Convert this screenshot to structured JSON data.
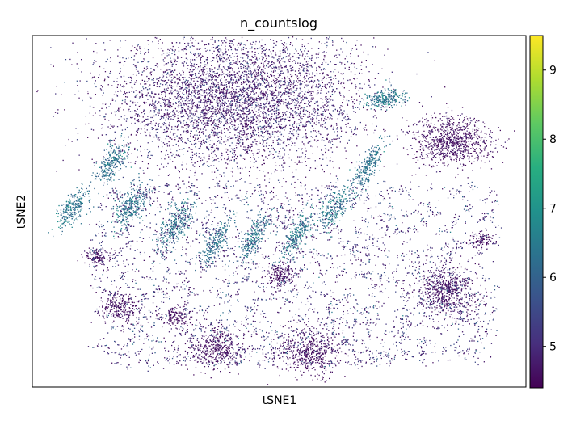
{
  "chart_data": {
    "type": "scatter",
    "title": "n_countslog",
    "xlabel": "tSNE1",
    "ylabel": "tSNE2",
    "x_ticks_shown": false,
    "y_ticks_shown": false,
    "grid": false,
    "legend": "none",
    "colorbar": {
      "position": "right",
      "colormap": "viridis",
      "range": [
        4.4,
        9.5
      ],
      "ticks": [
        5,
        6,
        7,
        8,
        9
      ],
      "tick_labels": [
        "5",
        "6",
        "7",
        "8",
        "9"
      ]
    },
    "axis_range_estimate": {
      "xlim": [
        0,
        100
      ],
      "ylim": [
        0,
        100
      ]
    },
    "clusters": [
      {
        "name": "large-center",
        "x": 41,
        "y": 82,
        "sx": 13,
        "sy": 10,
        "n": 5200,
        "cmin": 4.5,
        "cmax": 6.2,
        "shape": "blob"
      },
      {
        "name": "right-upper-blob",
        "x": 85,
        "y": 70,
        "sx": 4.0,
        "sy": 3.5,
        "n": 900,
        "cmin": 4.5,
        "cmax": 5.2,
        "shape": "blob"
      },
      {
        "name": "right-middle-blob",
        "x": 84,
        "y": 28,
        "sx": 3.0,
        "sy": 3.3,
        "n": 600,
        "cmin": 4.5,
        "cmax": 5.2,
        "shape": "blob"
      },
      {
        "name": "bottom-left-blob",
        "x": 37,
        "y": 11,
        "sx": 2.8,
        "sy": 2.9,
        "n": 420,
        "cmin": 4.5,
        "cmax": 5.0,
        "shape": "blob"
      },
      {
        "name": "bottom-center-blob",
        "x": 56,
        "y": 10,
        "sx": 3.3,
        "sy": 3.3,
        "n": 520,
        "cmin": 4.5,
        "cmax": 5.0,
        "shape": "blob"
      },
      {
        "name": "left-lower-blob",
        "x": 18,
        "y": 23,
        "sx": 2.0,
        "sy": 2.0,
        "n": 220,
        "cmin": 4.5,
        "cmax": 5.0,
        "shape": "blob"
      },
      {
        "name": "left-lower-blob-2",
        "x": 29,
        "y": 20,
        "sx": 1.6,
        "sy": 1.7,
        "n": 160,
        "cmin": 4.5,
        "cmax": 5.0,
        "shape": "blob"
      },
      {
        "name": "center-blob",
        "x": 50,
        "y": 32,
        "sx": 1.7,
        "sy": 1.6,
        "n": 180,
        "cmin": 4.5,
        "cmax": 5.0,
        "shape": "blob"
      },
      {
        "name": "left-small-blob",
        "x": 13,
        "y": 37,
        "sx": 1.4,
        "sy": 1.3,
        "n": 110,
        "cmin": 4.5,
        "cmax": 5.0,
        "shape": "blob"
      },
      {
        "name": "right-small-blob",
        "x": 91,
        "y": 42,
        "sx": 1.3,
        "sy": 1.2,
        "n": 90,
        "cmin": 4.5,
        "cmax": 5.0,
        "shape": "blob"
      },
      {
        "name": "streak-far-left",
        "x": 8,
        "y": 51,
        "sx": 1.2,
        "sy": 3.0,
        "n": 260,
        "cmin": 5.8,
        "cmax": 7.3,
        "shape": "streak"
      },
      {
        "name": "streak-left-1",
        "x": 16,
        "y": 64,
        "sx": 1.3,
        "sy": 3.2,
        "n": 280,
        "cmin": 5.8,
        "cmax": 7.2,
        "shape": "streak"
      },
      {
        "name": "streak-left-2",
        "x": 20,
        "y": 52,
        "sx": 1.4,
        "sy": 3.2,
        "n": 300,
        "cmin": 5.8,
        "cmax": 7.3,
        "shape": "streak"
      },
      {
        "name": "streak-left-3",
        "x": 29,
        "y": 46,
        "sx": 1.3,
        "sy": 3.6,
        "n": 310,
        "cmin": 5.8,
        "cmax": 7.4,
        "shape": "streak"
      },
      {
        "name": "streak-left-4",
        "x": 37,
        "y": 41,
        "sx": 1.0,
        "sy": 3.3,
        "n": 240,
        "cmin": 5.8,
        "cmax": 7.0,
        "shape": "streak"
      },
      {
        "name": "streak-center-1",
        "x": 45,
        "y": 43,
        "sx": 1.1,
        "sy": 3.4,
        "n": 260,
        "cmin": 5.8,
        "cmax": 7.2,
        "shape": "streak"
      },
      {
        "name": "streak-center-2",
        "x": 54,
        "y": 44,
        "sx": 1.1,
        "sy": 3.4,
        "n": 250,
        "cmin": 6.0,
        "cmax": 7.4,
        "shape": "streak"
      },
      {
        "name": "streak-center-3",
        "x": 61,
        "y": 51,
        "sx": 1.3,
        "sy": 3.2,
        "n": 260,
        "cmin": 5.8,
        "cmax": 7.4,
        "shape": "streak"
      },
      {
        "name": "streak-right-1",
        "x": 68,
        "y": 63,
        "sx": 1.0,
        "sy": 3.4,
        "n": 260,
        "cmin": 5.8,
        "cmax": 7.2,
        "shape": "streak"
      },
      {
        "name": "streak-right-top",
        "x": 71,
        "y": 82,
        "sx": 2.0,
        "sy": 1.3,
        "n": 260,
        "cmin": 5.8,
        "cmax": 7.4,
        "shape": "streak"
      }
    ],
    "scatter_background_n": 1500
  }
}
